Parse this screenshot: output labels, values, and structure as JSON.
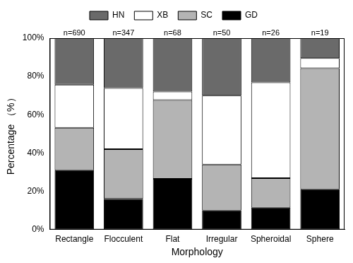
{
  "chart_data": {
    "type": "bar",
    "stacked": true,
    "x_label": "Morphology",
    "y_label": "Percentage （%）",
    "categories": [
      "Rectangle",
      "Flocculent",
      "Flat",
      "Irregular",
      "Spheroidal",
      "Sphere"
    ],
    "annotations": [
      "n=690",
      "n=347",
      "n=68",
      "n=50",
      "n=26",
      "n=19"
    ],
    "series": [
      {
        "name": "GD",
        "color": "#000000",
        "values": [
          31.0,
          16.1,
          26.5,
          10.0,
          11.5,
          21.1
        ]
      },
      {
        "name": "SC",
        "color": "#b4b4b4",
        "values": [
          22.2,
          25.9,
          41.2,
          24.0,
          15.4,
          63.2
        ]
      },
      {
        "name": "XB",
        "color": "#ffffff",
        "values": [
          22.5,
          32.0,
          4.4,
          36.0,
          50.0,
          5.3
        ]
      },
      {
        "name": "HN",
        "color": "#6a6a6a",
        "values": [
          24.3,
          26.0,
          27.9,
          30.0,
          23.1,
          10.4
        ]
      }
    ],
    "ylim": [
      0,
      100
    ],
    "yticks": [
      {
        "value": 0,
        "label": "0%"
      },
      {
        "value": 20,
        "label": "20%"
      },
      {
        "value": 40,
        "label": "40%"
      },
      {
        "value": 60,
        "label": "60%"
      },
      {
        "value": 80,
        "label": "80%"
      },
      {
        "value": 100,
        "label": "100%"
      }
    ],
    "grid": false,
    "legend": "top"
  }
}
